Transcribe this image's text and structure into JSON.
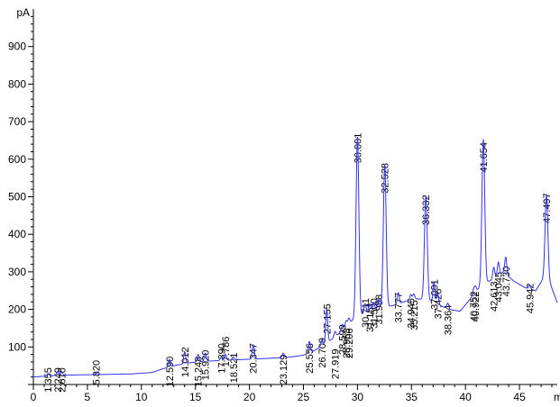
{
  "chart_data": {
    "type": "line",
    "y_unit": "pA",
    "x_unit": "min",
    "xlim": [
      0,
      48.5
    ],
    "ylim": [
      0,
      1000
    ],
    "x_ticks": [
      "0",
      "5",
      "10",
      "15",
      "20",
      "25",
      "30",
      "35",
      "40",
      "45"
    ],
    "y_ticks": [
      "100",
      "200",
      "300",
      "400",
      "500",
      "600",
      "700",
      "800",
      "900"
    ],
    "grid": false,
    "series_color": "#3333ee",
    "baseline": [
      [
        0.0,
        20
      ],
      [
        1.0,
        22
      ],
      [
        2.0,
        24
      ],
      [
        3.0,
        25
      ],
      [
        5.0,
        26
      ],
      [
        7.0,
        27
      ],
      [
        9.0,
        28
      ],
      [
        11.0,
        32
      ],
      [
        12.0,
        42
      ],
      [
        13.0,
        50
      ],
      [
        14.5,
        58
      ],
      [
        16.0,
        62
      ],
      [
        17.5,
        64
      ],
      [
        19.0,
        66
      ],
      [
        20.5,
        68
      ],
      [
        22.0,
        70
      ],
      [
        23.5,
        72
      ],
      [
        25.0,
        78
      ],
      [
        26.0,
        90
      ],
      [
        27.0,
        108
      ],
      [
        28.0,
        128
      ],
      [
        28.8,
        150
      ],
      [
        29.5,
        170
      ],
      [
        30.5,
        188
      ],
      [
        31.5,
        198
      ],
      [
        32.5,
        205
      ],
      [
        33.5,
        212
      ],
      [
        34.5,
        222
      ],
      [
        35.5,
        228
      ],
      [
        36.5,
        226
      ],
      [
        37.5,
        212
      ],
      [
        38.5,
        200
      ],
      [
        39.5,
        195
      ],
      [
        40.5,
        230
      ],
      [
        41.5,
        265
      ],
      [
        42.5,
        280
      ],
      [
        43.5,
        300
      ],
      [
        44.5,
        275
      ],
      [
        45.5,
        258
      ],
      [
        46.5,
        250
      ],
      [
        47.5,
        295
      ],
      [
        48.5,
        218
      ]
    ],
    "peaks": [
      {
        "label": "1.355",
        "rt": 1.355,
        "height": 6,
        "label_y": 45
      },
      {
        "label": "2.249",
        "rt": 2.249,
        "height": 10,
        "label_y": 45
      },
      {
        "label": "2.610",
        "rt": 2.61,
        "height": 10,
        "label_y": 45
      },
      {
        "label": "5.820",
        "rt": 5.82,
        "height": 7,
        "label_y": 65
      },
      {
        "label": "12.590",
        "rt": 12.59,
        "height": 20,
        "label_y": 75
      },
      {
        "label": "14.012",
        "rt": 14.012,
        "height": 32,
        "label_y": 100
      },
      {
        "label": "15.248",
        "rt": 15.248,
        "height": 20,
        "label_y": 75
      },
      {
        "label": "15.920",
        "rt": 15.92,
        "height": 22,
        "label_y": 92
      },
      {
        "label": "17.390",
        "rt": 17.39,
        "height": 8,
        "label_y": 110
      },
      {
        "label": "17.786",
        "rt": 17.786,
        "height": 16,
        "label_y": 128
      },
      {
        "label": "18.521",
        "rt": 18.521,
        "height": 8,
        "label_y": 85
      },
      {
        "label": "20.347",
        "rt": 20.347,
        "height": 38,
        "label_y": 110
      },
      {
        "label": "23.129",
        "rt": 23.129,
        "height": 12,
        "label_y": 80
      },
      {
        "label": "25.556",
        "rt": 25.556,
        "height": 30,
        "label_y": 110
      },
      {
        "label": "26.709",
        "rt": 26.709,
        "height": 16,
        "label_y": 125
      },
      {
        "label": "27.155",
        "rt": 27.155,
        "height": 90,
        "label_y": 215
      },
      {
        "label": "27.919",
        "rt": 27.919,
        "height": 15,
        "label_y": 95
      },
      {
        "label": "28.599",
        "rt": 28.599,
        "height": 15,
        "label_y": 160
      },
      {
        "label": "28.953",
        "rt": 28.953,
        "height": 15,
        "label_y": 150
      },
      {
        "label": "29.206",
        "rt": 29.206,
        "height": 15,
        "label_y": 150
      },
      {
        "label": "30.001",
        "rt": 30.001,
        "height": 480,
        "label_y": 670
      },
      {
        "label": "30.711",
        "rt": 30.711,
        "height": 25,
        "label_y": 230
      },
      {
        "label": "31.151",
        "rt": 31.151,
        "height": 20,
        "label_y": 220
      },
      {
        "label": "31.500",
        "rt": 31.5,
        "height": 20,
        "label_y": 230
      },
      {
        "label": "31.958",
        "rt": 31.958,
        "height": 25,
        "label_y": 240
      },
      {
        "label": "32.528",
        "rt": 32.528,
        "height": 380,
        "label_y": 590
      },
      {
        "label": "33.777",
        "rt": 33.777,
        "height": 30,
        "label_y": 245
      },
      {
        "label": "34.945",
        "rt": 34.945,
        "height": 15,
        "label_y": 230
      },
      {
        "label": "35.215",
        "rt": 35.215,
        "height": 15,
        "label_y": 225
      },
      {
        "label": "36.332",
        "rt": 36.332,
        "height": 275,
        "label_y": 505
      },
      {
        "label": "37.091",
        "rt": 37.091,
        "height": 55,
        "label_y": 280
      },
      {
        "label": "37.426",
        "rt": 37.426,
        "height": 30,
        "label_y": 255
      },
      {
        "label": "38.364",
        "rt": 38.364,
        "height": 15,
        "label_y": 212
      },
      {
        "label": "40.752",
        "rt": 40.752,
        "height": 15,
        "label_y": 248
      },
      {
        "label": "40.922",
        "rt": 40.922,
        "height": 15,
        "label_y": 248
      },
      {
        "label": "41.654",
        "rt": 41.654,
        "height": 385,
        "label_y": 645
      },
      {
        "label": "42.613",
        "rt": 42.613,
        "height": 30,
        "label_y": 275
      },
      {
        "label": "43.045",
        "rt": 43.045,
        "height": 35,
        "label_y": 300
      },
      {
        "label": "43.730",
        "rt": 43.73,
        "height": 45,
        "label_y": 315
      },
      {
        "label": "45.942",
        "rt": 45.942,
        "height": 10,
        "label_y": 270
      },
      {
        "label": "47.497",
        "rt": 47.497,
        "height": 210,
        "label_y": 510
      }
    ]
  }
}
